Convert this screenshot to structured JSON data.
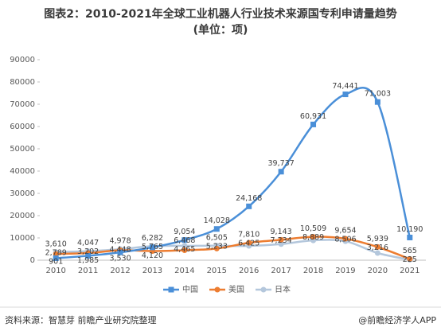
{
  "chart_data": {
    "type": "line",
    "title": "图表2：2010-2021年全球工业机器人行业技术来源国专利申请量趋势",
    "subtitle": "(单位：项)",
    "categories": [
      "2010",
      "2011",
      "2012",
      "2013",
      "2014",
      "2015",
      "2016",
      "2017",
      "2018",
      "2019",
      "2020",
      "2021"
    ],
    "series": [
      {
        "name": "中国",
        "color": "#4a8fd8",
        "marker": "square",
        "values": [
          901,
          1985,
          3530,
          5765,
          9054,
          14028,
          24168,
          39737,
          60931,
          74441,
          71003,
          10190
        ],
        "value_labels": [
          "901",
          "1,985",
          "3,530",
          "5,765",
          "9,054",
          "14,028",
          "24,168",
          "39,737",
          "60,931",
          "74,441",
          "71,003",
          "10,190"
        ]
      },
      {
        "name": "美国",
        "color": "#ed7d31",
        "marker": "circle",
        "values": [
          2789,
          3202,
          4448,
          4120,
          4465,
          5233,
          7810,
          9143,
          10509,
          9654,
          5939,
          565
        ],
        "value_labels": [
          "2,789",
          "3,202",
          "4,448",
          "4,120",
          "4,465",
          "5,233",
          "7,810",
          "9,143",
          "10,509",
          "9,654",
          "5,939",
          "565"
        ]
      },
      {
        "name": "日本",
        "color": "#b4c7dc",
        "marker": "circle",
        "values": [
          3610,
          4047,
          4978,
          6282,
          6468,
          6505,
          6425,
          7234,
          8889,
          8506,
          3216,
          225
        ],
        "value_labels": [
          "3,610",
          "4,047",
          "4,978",
          "6,282",
          "6,468",
          "6,505",
          "6,425",
          "7,234",
          "8,889",
          "8,506",
          "3,216",
          "225"
        ]
      }
    ],
    "ylim": [
      0,
      90000
    ],
    "yticks": [
      0,
      10000,
      20000,
      30000,
      40000,
      50000,
      60000,
      70000,
      80000,
      90000
    ],
    "legend": "bottom",
    "source": "资料来源：智慧芽 前瞻产业研究院整理",
    "credit": "@前瞻经济学人APP"
  }
}
